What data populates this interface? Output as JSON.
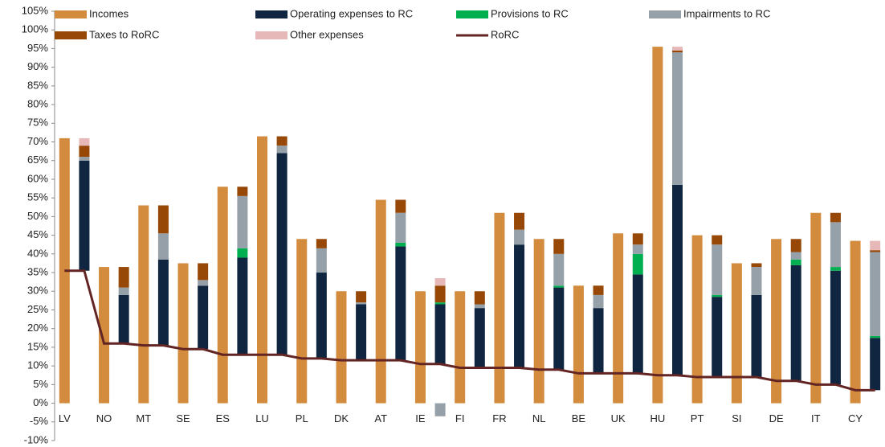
{
  "chart_data": {
    "type": "bar",
    "categories": [
      "LV",
      null,
      "NO",
      null,
      "MT",
      null,
      "SE",
      null,
      "ES",
      null,
      "LU",
      null,
      "PL",
      null,
      "DK",
      null,
      "AT",
      null,
      "IE",
      null,
      "FI",
      null,
      "FR",
      null,
      "NL",
      null,
      "BE",
      null,
      "UK",
      null,
      "HU",
      null,
      "PT",
      null,
      "SI",
      null,
      "DE",
      null,
      "IT",
      null,
      "CY",
      null
    ],
    "series": [
      {
        "name": "Incomes",
        "color": "#d38b3e",
        "values": [
          71,
          null,
          36.5,
          null,
          53,
          null,
          37.5,
          null,
          58,
          null,
          71.5,
          null,
          44,
          null,
          30,
          null,
          54.5,
          null,
          30,
          null,
          30,
          null,
          51,
          null,
          44,
          null,
          31.5,
          null,
          45.5,
          null,
          95.5,
          null,
          45,
          null,
          37.5,
          null,
          44,
          null,
          51,
          null,
          43.5,
          null
        ]
      },
      {
        "name": "Operating expenses to RC",
        "color": "#10253f",
        "stack": true,
        "values": [
          null,
          29.5,
          null,
          13,
          null,
          23,
          null,
          17,
          null,
          26,
          null,
          54,
          null,
          23,
          null,
          15,
          null,
          30.5,
          null,
          16,
          null,
          16,
          null,
          33,
          null,
          22,
          null,
          17.5,
          null,
          26.5,
          null,
          51,
          null,
          21.5,
          null,
          22,
          null,
          31,
          null,
          30.5,
          null,
          14
        ]
      },
      {
        "name": "Provisions to RC",
        "color": "#00b050",
        "stack": true,
        "values": [
          null,
          0,
          null,
          0,
          null,
          0,
          null,
          0,
          null,
          2.5,
          null,
          0,
          null,
          0,
          null,
          0,
          null,
          1,
          null,
          0.5,
          null,
          0,
          null,
          0,
          null,
          0.5,
          null,
          0,
          null,
          5.5,
          null,
          0,
          null,
          0.5,
          null,
          0,
          null,
          1.5,
          null,
          1,
          null,
          0.5
        ]
      },
      {
        "name": "Impairments to RC",
        "color": "#95a0a9",
        "stack": true,
        "values": [
          null,
          1,
          null,
          2,
          null,
          7,
          null,
          1.5,
          null,
          14,
          null,
          2,
          null,
          6.5,
          null,
          0.5,
          null,
          8,
          null,
          -3.5,
          null,
          1,
          null,
          4,
          null,
          8.5,
          null,
          3.5,
          null,
          2.5,
          null,
          35.5,
          null,
          13.5,
          null,
          7.5,
          null,
          2,
          null,
          12,
          null,
          22.5
        ]
      },
      {
        "name": "Taxes to RoRC",
        "color": "#974806",
        "stack": true,
        "values": [
          null,
          3,
          null,
          5.5,
          null,
          7.5,
          null,
          4.5,
          null,
          2.5,
          null,
          2.5,
          null,
          2.5,
          null,
          3,
          null,
          3.5,
          null,
          4.5,
          null,
          3.5,
          null,
          4.5,
          null,
          4,
          null,
          2.5,
          null,
          3,
          null,
          0.5,
          null,
          2.5,
          null,
          1,
          null,
          3.5,
          null,
          2.5,
          null,
          0.5
        ]
      },
      {
        "name": "Other expenses",
        "color": "#e6b9b8",
        "stack": true,
        "values": [
          null,
          2,
          null,
          0,
          null,
          0,
          null,
          0,
          null,
          0,
          null,
          0,
          null,
          0,
          null,
          0,
          null,
          0,
          null,
          2,
          null,
          0,
          null,
          0,
          null,
          0,
          null,
          0,
          null,
          0,
          null,
          1,
          null,
          0,
          null,
          0,
          null,
          0,
          null,
          0,
          null,
          2.5
        ]
      },
      {
        "name": "RoRC",
        "color": "#632523",
        "type": "line",
        "values": [
          35.5,
          35.5,
          16,
          16,
          15.5,
          15.5,
          14.5,
          14.5,
          13,
          13,
          13,
          13,
          12,
          12,
          11.5,
          11.5,
          11.5,
          11.5,
          10.5,
          10.5,
          9.5,
          9.5,
          9.5,
          9.5,
          9,
          9,
          8,
          8,
          8,
          8,
          7.5,
          7.5,
          7,
          7,
          7,
          7,
          6,
          6,
          5,
          5,
          3.5,
          3.5
        ]
      }
    ],
    "ylim": [
      -10,
      105
    ],
    "yticks": [
      {
        "value": -10,
        "label": "-10%"
      },
      {
        "value": -5,
        "label": "-5%"
      },
      {
        "value": 0,
        "label": "0%"
      },
      {
        "value": 5,
        "label": "5%"
      },
      {
        "value": 10,
        "label": "10%"
      },
      {
        "value": 15,
        "label": "15%"
      },
      {
        "value": 20,
        "label": "20%"
      },
      {
        "value": 25,
        "label": "25%"
      },
      {
        "value": 30,
        "label": "30%"
      },
      {
        "value": 35,
        "label": "35%"
      },
      {
        "value": 40,
        "label": "40%"
      },
      {
        "value": 45,
        "label": "45%"
      },
      {
        "value": 50,
        "label": "50%"
      },
      {
        "value": 55,
        "label": "55%"
      },
      {
        "value": 60,
        "label": "60%"
      },
      {
        "value": 65,
        "label": "65%"
      },
      {
        "value": 70,
        "label": "70%"
      },
      {
        "value": 75,
        "label": "75%"
      },
      {
        "value": 80,
        "label": "80%"
      },
      {
        "value": 85,
        "label": "85%"
      },
      {
        "value": 90,
        "label": "90%"
      },
      {
        "value": 95,
        "label": "95%"
      },
      {
        "value": 100,
        "label": "100%"
      },
      {
        "value": 105,
        "label": "105%"
      }
    ],
    "grid": false,
    "legend": "top"
  }
}
